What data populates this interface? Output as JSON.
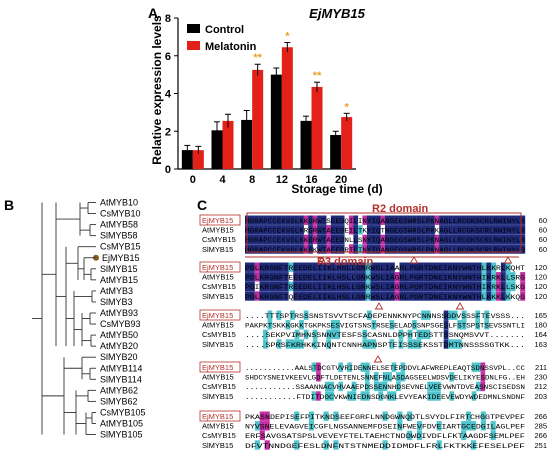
{
  "panel_labels": {
    "a": "A",
    "b": "B",
    "c": "C"
  },
  "chart_data": {
    "type": "bar",
    "title": "EjMYB15",
    "xlabel": "Storage time (d)",
    "ylabel": "Relative expression levels",
    "categories": [
      "0",
      "4",
      "8",
      "12",
      "16",
      "20"
    ],
    "ylim": [
      0,
      8
    ],
    "yticks": [
      "0",
      "2",
      "4",
      "6",
      "8"
    ],
    "series": [
      {
        "name": "Control",
        "color": "#000000",
        "values": [
          1.0,
          2.05,
          2.6,
          5.0,
          2.55,
          1.8
        ],
        "errors": [
          0.25,
          0.45,
          0.5,
          0.35,
          0.25,
          0.2
        ]
      },
      {
        "name": "Melatonin",
        "color": "#e32119",
        "values": [
          1.0,
          2.55,
          5.25,
          6.45,
          4.35,
          2.75
        ],
        "errors": [
          0.2,
          0.35,
          0.3,
          0.25,
          0.25,
          0.2
        ]
      }
    ],
    "annotations": [
      "",
      "",
      "**",
      "*",
      "**",
      "*"
    ],
    "legend_position": "top-left"
  },
  "tree": {
    "leaves": [
      "AtMYB10",
      "CsMYB10",
      "AtMYB58",
      "SlMYB58",
      "CsMYB15",
      "EjMYB15",
      "SlMYB15",
      "AtMYB15",
      "AtMYB3",
      "SlMYB3",
      "AtMYB93",
      "CsMYB93",
      "AtMYB50",
      "AtMYB20",
      "SlMYB20",
      "AtMYB114",
      "SlMYB114",
      "AtMYB62",
      "SlMYB62",
      "CsMYB105",
      "AtMYB105",
      "SlMYB105"
    ],
    "highlight": "EjMYB15"
  },
  "alignment": {
    "domains": [
      "R2 domain",
      "R3 domain"
    ],
    "blocks": [
      {
        "rows": [
          {
            "name": "EjMYB15",
            "seq": "MGRAPCCEKVGLKKGRWTSEEDQILINYIQANGEGSWRSLPKNAGLLRCGKSCRLRWINYLR",
            "num": "60"
          },
          {
            "name": "AtMYB15",
            "seq": "MGRAPCCEKVGLKRGRWTAEEDEILTKYIQTNGEGSWRSLPKKAGLLRCGKSCRLRWINYLR",
            "num": "60"
          },
          {
            "name": "CsMYB15",
            "seq": "MGRAPCCEKVGLKKGRWTAEEDNLLSNYIQANGEGSWRSLPKNAGLLRCGKSCRLRWINYLR",
            "num": "60"
          },
          {
            "name": "SlMYB15",
            "seq": "MGRAPCCEKVGLKKGKWTAEEDRILTNYIQANGEGSWRSLPKNAGLLRCGKSCRLRWINYLR",
            "num": "60"
          }
        ]
      },
      {
        "rows": [
          {
            "name": "EjMYB15",
            "seq": "PDLKRGNFTREEDELIIKLHSLLGNRWSLIAARLPGRTDNEIKNYWNTHLKKRLKQHT",
            "num": "120"
          },
          {
            "name": "AtMYB15",
            "seq": "PDLKRGNFTEEEDELIIKLHSLLGNKWSLIAGRLPGRTDNEIKNYWNTHIKRKLLSRG",
            "num": "120"
          },
          {
            "name": "CsMYB15",
            "seq": "PDIKRGNFTREEDELIIKLHSLLGNKWSLIAGRLPGRTDNEIKNYWNTHIKRKLLSKG",
            "num": "120"
          },
          {
            "name": "SlMYB15",
            "seq": "PDLKRGNFTQEEDELIIKLHSLLGNRWSLIAGRLPGRTDNEIKNYWNTHLKKKLKKQG",
            "num": "120"
          }
        ]
      },
      {
        "rows": [
          {
            "name": "EjMYB15",
            "seq": "....TTTSPTRSSSNSTSVVTSCFADEPENNKNYPCNNNSSGDVSSSFTEVSSS...",
            "num": "165"
          },
          {
            "name": "AtMYB15",
            "seq": "PAKPKTSKKKGKKTGKPKSESVIGTSNSTRSESELADSSNPSGESLFSTSPSTSEVSSNTLI",
            "num": "180"
          },
          {
            "name": "CsMYB15",
            "seq": "....SEKPVIMHNSSNNVTESFSSCASNLDPPHTEDSTTSSNQMSVVT.......",
            "num": "164"
          },
          {
            "name": "SlMYB15",
            "seq": "....SPRSFKRHKKINQNTCNNHAPNSPTEISSSEKSSTDMTNNSSSSGTKK...",
            "num": "163"
          }
        ]
      },
      {
        "rows": [
          {
            "name": "EjMYB15",
            "seq": "...........AALSTDCGTVVRIDENNELSETEPDDVLAFWREPLEAQTSDNSSVPL..CC",
            "num": "211"
          },
          {
            "name": "AtMYB15",
            "seq": "SHDCYSNEIVKEEVLGDFTLDETENLSNNEFNLASDAGSEELWDSVDELIKYESDNLFG..EH",
            "num": "230"
          },
          {
            "name": "CsMYB15",
            "seq": "...........SSAANNACVHVAAEPDSSENNHDSEVNELVEEVWNTDVEASNSCISEDSN",
            "num": "212"
          },
          {
            "name": "SlMYB15",
            "seq": "...........FTDITDOCVKWNIEDNSDGNKLEVYEAKIDEEVEWDYWDEDMNLSNDNF",
            "num": "203"
          }
        ]
      },
      {
        "rows": [
          {
            "name": "EjMYB15",
            "seq": "PKASNDEPISEFPITKNDSEEFGRFLNNDGWNQDTLSVYDLFIRTCHGGTPEVPEF",
            "num": "266"
          },
          {
            "name": "AtMYB15",
            "seq": "NYVSNELEVAGVEICGFLNGSANNEMFDSEINFWEVFDVEIARTGCEDGILAGLPEF",
            "num": "285"
          },
          {
            "name": "CsMYB15",
            "seq": "ERFSAVGSATSPSLVEVEYFTELTAEHCTNDDWDIVDFLFKTAAGDFSEMLPEF",
            "num": "266"
          },
          {
            "name": "SlMYB15",
            "seq": "DFVTNNDGEFESLDNFNTSTNMEDDIDMDFLFRLFKTKKEFESELPEF",
            "num": "251"
          }
        ]
      }
    ]
  }
}
